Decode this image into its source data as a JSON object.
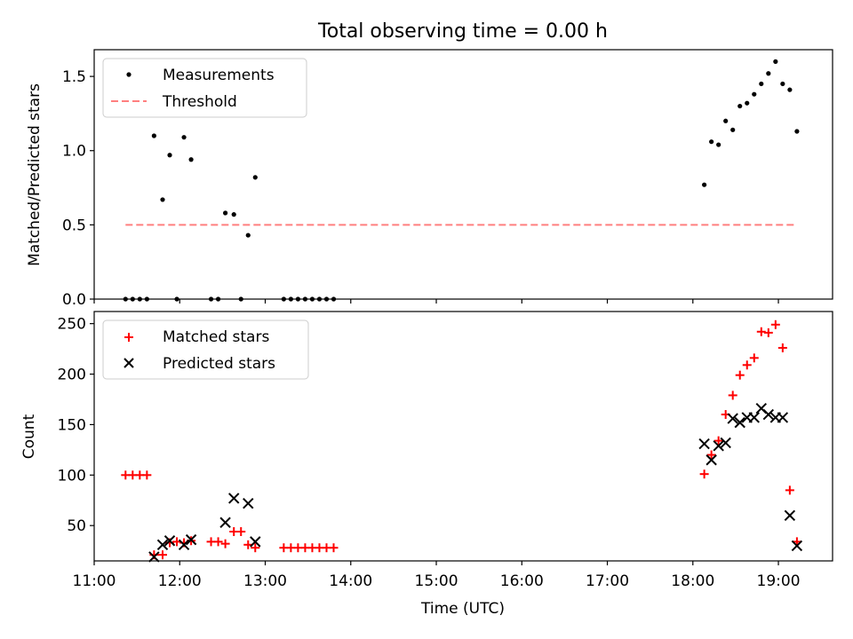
{
  "figure": {
    "title": "Total observing time = 0.00 h",
    "xlabel": "Time (UTC)"
  },
  "chart_data": [
    {
      "type": "scatter",
      "ylabel": "Matched/Predicted stars",
      "xlim": [
        "11:00",
        "19:38"
      ],
      "ylim": [
        0,
        1.68
      ],
      "yticks": [
        0.0,
        0.5,
        1.0,
        1.5
      ],
      "yticklabels": [
        "0.0",
        "0.5",
        "1.0",
        "1.5"
      ],
      "grid": false,
      "legend_position": "top-left",
      "series": [
        {
          "name": "Measurements",
          "marker": "dot",
          "color": "#000000",
          "points": [
            [
              "11:22",
              0.0
            ],
            [
              "11:27",
              0.0
            ],
            [
              "11:32",
              0.0
            ],
            [
              "11:37",
              0.0
            ],
            [
              "11:42",
              1.1
            ],
            [
              "11:48",
              0.67
            ],
            [
              "11:53",
              0.97
            ],
            [
              "11:58",
              0.0
            ],
            [
              "12:03",
              1.09
            ],
            [
              "12:08",
              0.94
            ],
            [
              "12:22",
              0.0
            ],
            [
              "12:27",
              0.0
            ],
            [
              "12:32",
              0.58
            ],
            [
              "12:38",
              0.57
            ],
            [
              "12:43",
              0.0
            ],
            [
              "12:48",
              0.43
            ],
            [
              "12:53",
              0.82
            ],
            [
              "13:13",
              0.0
            ],
            [
              "13:18",
              0.0
            ],
            [
              "13:23",
              0.0
            ],
            [
              "13:28",
              0.0
            ],
            [
              "13:33",
              0.0
            ],
            [
              "13:38",
              0.0
            ],
            [
              "13:43",
              0.0
            ],
            [
              "13:48",
              0.0
            ],
            [
              "18:08",
              0.77
            ],
            [
              "18:13",
              1.06
            ],
            [
              "18:18",
              1.04
            ],
            [
              "18:23",
              1.2
            ],
            [
              "18:28",
              1.14
            ],
            [
              "18:33",
              1.3
            ],
            [
              "18:38",
              1.32
            ],
            [
              "18:43",
              1.38
            ],
            [
              "18:48",
              1.45
            ],
            [
              "18:53",
              1.52
            ],
            [
              "18:58",
              1.6
            ],
            [
              "19:03",
              1.45
            ],
            [
              "19:08",
              1.41
            ],
            [
              "19:13",
              1.13
            ]
          ]
        },
        {
          "name": "Threshold",
          "marker": "dashed-line",
          "color": "#ff7f7f",
          "points": [
            [
              "11:22",
              0.5
            ],
            [
              "19:13",
              0.5
            ]
          ]
        }
      ]
    },
    {
      "type": "scatter",
      "ylabel": "Count",
      "xlim": [
        "11:00",
        "19:38"
      ],
      "ylim": [
        15,
        262
      ],
      "yticks": [
        50,
        100,
        150,
        200,
        250
      ],
      "yticklabels": [
        "50",
        "100",
        "150",
        "200",
        "250"
      ],
      "xticks": [
        "11:00",
        "12:00",
        "13:00",
        "14:00",
        "15:00",
        "16:00",
        "17:00",
        "18:00",
        "19:00"
      ],
      "xticklabels": [
        "11:00",
        "12:00",
        "13:00",
        "14:00",
        "15:00",
        "16:00",
        "17:00",
        "18:00",
        "19:00"
      ],
      "grid": false,
      "legend_position": "top-left",
      "series": [
        {
          "name": "Matched stars",
          "marker": "plus",
          "color": "#ff0000",
          "points": [
            [
              "11:22",
              100
            ],
            [
              "11:27",
              100
            ],
            [
              "11:32",
              100
            ],
            [
              "11:37",
              100
            ],
            [
              "11:42",
              21
            ],
            [
              "11:48",
              21
            ],
            [
              "11:53",
              33
            ],
            [
              "11:58",
              34
            ],
            [
              "12:03",
              33
            ],
            [
              "12:08",
              35
            ],
            [
              "12:22",
              34
            ],
            [
              "12:27",
              34
            ],
            [
              "12:32",
              32
            ],
            [
              "12:38",
              44
            ],
            [
              "12:43",
              44
            ],
            [
              "12:48",
              31
            ],
            [
              "12:53",
              28
            ],
            [
              "13:13",
              28
            ],
            [
              "13:18",
              28
            ],
            [
              "13:23",
              28
            ],
            [
              "13:28",
              28
            ],
            [
              "13:33",
              28
            ],
            [
              "13:38",
              28
            ],
            [
              "13:43",
              28
            ],
            [
              "13:48",
              28
            ],
            [
              "18:08",
              101
            ],
            [
              "18:13",
              120
            ],
            [
              "18:18",
              134
            ],
            [
              "18:23",
              160
            ],
            [
              "18:28",
              179
            ],
            [
              "18:33",
              199
            ],
            [
              "18:38",
              209
            ],
            [
              "18:43",
              216
            ],
            [
              "18:48",
              242
            ],
            [
              "18:53",
              241
            ],
            [
              "18:58",
              249
            ],
            [
              "19:03",
              226
            ],
            [
              "19:08",
              85
            ],
            [
              "19:13",
              34
            ]
          ]
        },
        {
          "name": "Predicted stars",
          "marker": "x",
          "color": "#000000",
          "points": [
            [
              "11:42",
              19
            ],
            [
              "11:48",
              31
            ],
            [
              "11:53",
              35
            ],
            [
              "12:03",
              31
            ],
            [
              "12:08",
              36
            ],
            [
              "12:32",
              53
            ],
            [
              "12:38",
              77
            ],
            [
              "12:48",
              72
            ],
            [
              "12:53",
              34
            ],
            [
              "18:08",
              131
            ],
            [
              "18:13",
              115
            ],
            [
              "18:18",
              129
            ],
            [
              "18:23",
              132
            ],
            [
              "18:28",
              156
            ],
            [
              "18:33",
              152
            ],
            [
              "18:38",
              157
            ],
            [
              "18:43",
              157
            ],
            [
              "18:48",
              166
            ],
            [
              "18:53",
              160
            ],
            [
              "18:58",
              157
            ],
            [
              "19:03",
              157
            ],
            [
              "19:08",
              60
            ],
            [
              "19:13",
              30
            ]
          ]
        }
      ]
    }
  ]
}
